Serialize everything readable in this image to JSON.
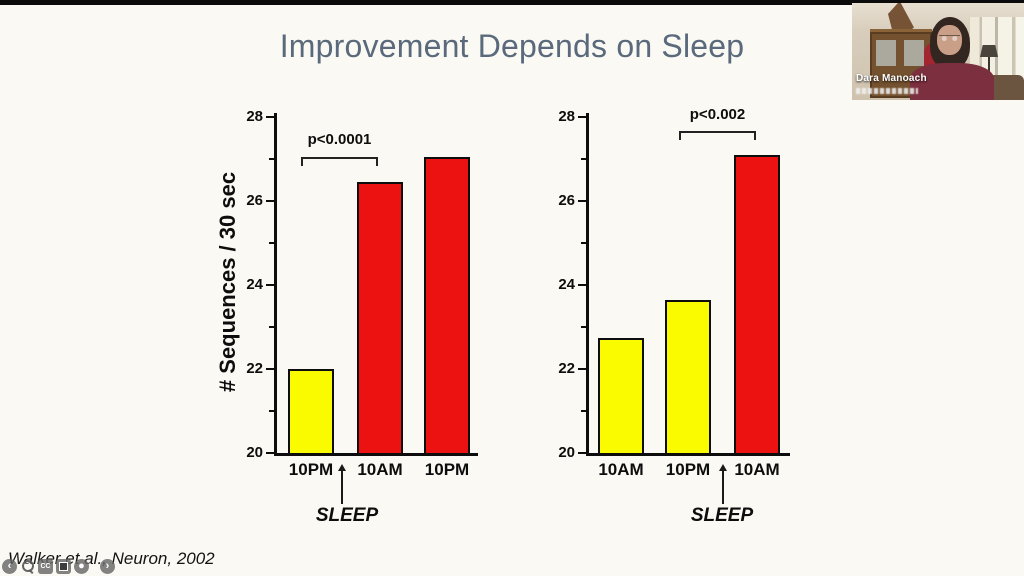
{
  "colors": {
    "slide_bg": "#faf9f3",
    "title": "#5a6a7c",
    "bar_yellow": "#fbfb00",
    "bar_red": "#ec1212",
    "axis": "#0d0d0d"
  },
  "title": {
    "text": "Improvement Depends on Sleep"
  },
  "citation": {
    "text": "Walker et al., Neuron, 2002"
  },
  "webcam": {
    "name_label": "Dara Manoach"
  },
  "player_controls": {
    "items": [
      {
        "name": "previous",
        "glyph": "‹"
      },
      {
        "name": "magnifier",
        "glyph": ""
      },
      {
        "name": "captions",
        "glyph": "CC"
      },
      {
        "name": "stop",
        "glyph": ""
      },
      {
        "name": "record",
        "glyph": "●"
      },
      {
        "name": "next",
        "glyph": "›"
      }
    ]
  },
  "chart_data": [
    {
      "type": "bar",
      "title": "",
      "ylabel": "# Sequences / 30 sec",
      "xlabel": "",
      "ylim": [
        20,
        28
      ],
      "yticks": [
        20,
        22,
        24,
        26,
        28
      ],
      "minor_yticks": [
        21,
        23,
        25,
        27
      ],
      "categories": [
        "10PM",
        "10AM",
        "10PM"
      ],
      "values": [
        22.0,
        26.45,
        27.05
      ],
      "bar_colors": [
        "#fbfb00",
        "#ec1212",
        "#ec1212"
      ],
      "significance": {
        "label": "p<0.0001",
        "from_bar": 0,
        "to_bar": 1
      },
      "annotation": {
        "label": "SLEEP",
        "between_bars": [
          0,
          1
        ]
      },
      "grid": false,
      "legend": null
    },
    {
      "type": "bar",
      "title": "",
      "ylabel": "",
      "xlabel": "",
      "ylim": [
        20,
        28
      ],
      "yticks": [
        20,
        22,
        24,
        26,
        28
      ],
      "minor_yticks": [
        21,
        23,
        25,
        27
      ],
      "categories": [
        "10AM",
        "10PM",
        "10AM"
      ],
      "values": [
        22.75,
        23.65,
        27.1
      ],
      "bar_colors": [
        "#fbfb00",
        "#fbfb00",
        "#ec1212"
      ],
      "significance": {
        "label": "p<0.002",
        "from_bar": 1,
        "to_bar": 2
      },
      "annotation": {
        "label": "SLEEP",
        "between_bars": [
          1,
          2
        ]
      },
      "grid": false,
      "legend": null
    }
  ]
}
